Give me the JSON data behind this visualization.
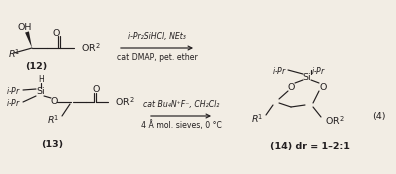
{
  "bg_color": "#f2ede4",
  "text_color": "#231f20",
  "rxn1_top": "i-Pr₂SiHCl, NEt₃",
  "rxn1_bot": "cat DMAP, pet. ether",
  "rxn2_top": "cat Bu₄N⁺F⁻, CH₂Cl₂",
  "rxn2_bot": "4 Å mol. sieves, 0 °C",
  "label12": "(12)",
  "label13": "(13)",
  "label14": "(14) dr = 1–2:1",
  "rxn_num": "(4)",
  "fs": 6.8,
  "fs_s": 5.6,
  "lw": 0.85
}
